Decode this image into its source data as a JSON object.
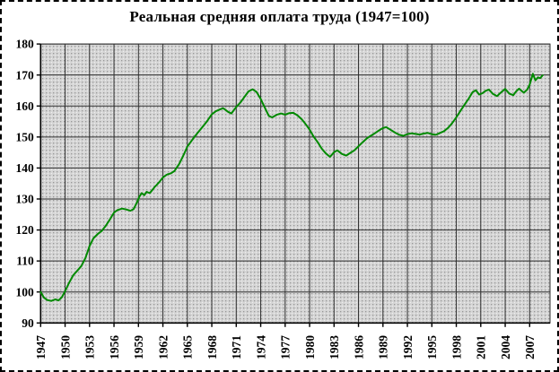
{
  "frame": {
    "border_style": "dashed",
    "page_bg": "#ffffff"
  },
  "chart_data": {
    "type": "line",
    "title": "Реальная средняя оплата труда (1947=100)",
    "xlabel": "",
    "ylabel": "",
    "xlim": [
      1947,
      2009.5
    ],
    "ylim": [
      90,
      180
    ],
    "x_ticks": [
      1947,
      1950,
      1953,
      1956,
      1959,
      1962,
      1965,
      1968,
      1971,
      1974,
      1977,
      1980,
      1983,
      1986,
      1989,
      1992,
      1995,
      1998,
      2001,
      2004,
      2007
    ],
    "y_ticks": [
      90,
      100,
      110,
      120,
      130,
      140,
      150,
      160,
      170,
      180
    ],
    "grid": true,
    "legend": false,
    "colors": {
      "line": "#008A00",
      "grid": "#2e2e2e",
      "axis": "#000000",
      "plot_bg": "#d6d6d6",
      "plot_dot": "#979797",
      "text": "#000000"
    },
    "series": [
      {
        "name": "Реальная средняя оплата труда",
        "points": [
          [
            1947.0,
            100.0
          ],
          [
            1947.4,
            98.2
          ],
          [
            1947.8,
            97.4
          ],
          [
            1948.3,
            97.1
          ],
          [
            1948.8,
            97.6
          ],
          [
            1949.2,
            97.3
          ],
          [
            1949.6,
            98.3
          ],
          [
            1950.0,
            100.2
          ],
          [
            1950.5,
            103.0
          ],
          [
            1951.0,
            105.4
          ],
          [
            1951.5,
            106.9
          ],
          [
            1952.0,
            108.4
          ],
          [
            1952.5,
            111.0
          ],
          [
            1953.0,
            114.8
          ],
          [
            1953.5,
            117.4
          ],
          [
            1954.0,
            118.7
          ],
          [
            1954.5,
            119.7
          ],
          [
            1955.0,
            121.4
          ],
          [
            1955.5,
            123.4
          ],
          [
            1956.0,
            125.6
          ],
          [
            1956.4,
            126.4
          ],
          [
            1957.0,
            126.9
          ],
          [
            1957.5,
            126.6
          ],
          [
            1958.0,
            126.2
          ],
          [
            1958.4,
            126.7
          ],
          [
            1958.8,
            128.8
          ],
          [
            1959.1,
            130.7
          ],
          [
            1959.4,
            131.9
          ],
          [
            1959.7,
            131.2
          ],
          [
            1960.0,
            132.3
          ],
          [
            1960.4,
            131.9
          ],
          [
            1961.0,
            133.9
          ],
          [
            1961.5,
            135.3
          ],
          [
            1962.0,
            136.9
          ],
          [
            1962.5,
            137.9
          ],
          [
            1963.0,
            138.3
          ],
          [
            1963.4,
            139.0
          ],
          [
            1964.0,
            141.3
          ],
          [
            1964.5,
            144.0
          ],
          [
            1965.0,
            146.9
          ],
          [
            1965.5,
            148.7
          ],
          [
            1966.0,
            150.5
          ],
          [
            1966.5,
            152.1
          ],
          [
            1967.0,
            153.7
          ],
          [
            1967.5,
            155.4
          ],
          [
            1968.0,
            157.3
          ],
          [
            1968.5,
            158.3
          ],
          [
            1969.0,
            158.9
          ],
          [
            1969.4,
            159.3
          ],
          [
            1970.0,
            158.1
          ],
          [
            1970.4,
            157.6
          ],
          [
            1971.0,
            159.7
          ],
          [
            1971.5,
            161.1
          ],
          [
            1972.0,
            162.9
          ],
          [
            1972.5,
            164.7
          ],
          [
            1973.0,
            165.4
          ],
          [
            1973.5,
            164.5
          ],
          [
            1974.0,
            162.3
          ],
          [
            1974.5,
            159.5
          ],
          [
            1975.0,
            156.8
          ],
          [
            1975.4,
            156.3
          ],
          [
            1976.0,
            157.2
          ],
          [
            1976.5,
            157.6
          ],
          [
            1977.0,
            157.2
          ],
          [
            1977.5,
            157.7
          ],
          [
            1978.0,
            157.8
          ],
          [
            1978.5,
            157.0
          ],
          [
            1979.0,
            155.8
          ],
          [
            1979.5,
            154.2
          ],
          [
            1980.0,
            152.4
          ],
          [
            1980.5,
            150.1
          ],
          [
            1981.0,
            148.3
          ],
          [
            1981.5,
            146.2
          ],
          [
            1982.0,
            144.7
          ],
          [
            1982.5,
            143.6
          ],
          [
            1983.0,
            145.1
          ],
          [
            1983.4,
            145.7
          ],
          [
            1984.0,
            144.5
          ],
          [
            1984.5,
            144.0
          ],
          [
            1985.0,
            144.9
          ],
          [
            1985.5,
            145.7
          ],
          [
            1986.0,
            147.0
          ],
          [
            1986.5,
            148.3
          ],
          [
            1987.0,
            149.5
          ],
          [
            1987.5,
            150.4
          ],
          [
            1988.0,
            151.2
          ],
          [
            1988.5,
            152.1
          ],
          [
            1989.0,
            152.9
          ],
          [
            1989.4,
            153.2
          ],
          [
            1990.0,
            152.2
          ],
          [
            1990.5,
            151.4
          ],
          [
            1991.0,
            150.7
          ],
          [
            1991.5,
            150.4
          ],
          [
            1992.0,
            150.9
          ],
          [
            1992.5,
            151.2
          ],
          [
            1993.0,
            151.0
          ],
          [
            1993.5,
            150.8
          ],
          [
            1994.0,
            151.1
          ],
          [
            1994.5,
            151.3
          ],
          [
            1995.0,
            150.9
          ],
          [
            1995.5,
            150.7
          ],
          [
            1996.0,
            151.3
          ],
          [
            1996.5,
            151.9
          ],
          [
            1997.0,
            153.0
          ],
          [
            1997.5,
            154.5
          ],
          [
            1998.0,
            156.3
          ],
          [
            1998.5,
            158.4
          ],
          [
            1999.0,
            160.4
          ],
          [
            1999.5,
            162.3
          ],
          [
            2000.0,
            164.5
          ],
          [
            2000.4,
            165.1
          ],
          [
            2000.8,
            163.7
          ],
          [
            2001.2,
            164.1
          ],
          [
            2001.6,
            164.9
          ],
          [
            2002.0,
            165.3
          ],
          [
            2002.5,
            163.9
          ],
          [
            2003.0,
            163.2
          ],
          [
            2003.5,
            164.4
          ],
          [
            2004.0,
            165.5
          ],
          [
            2004.5,
            164.0
          ],
          [
            2005.0,
            163.5
          ],
          [
            2005.3,
            164.6
          ],
          [
            2005.7,
            165.6
          ],
          [
            2006.0,
            164.9
          ],
          [
            2006.3,
            164.3
          ],
          [
            2006.7,
            165.3
          ],
          [
            2007.0,
            166.9
          ],
          [
            2007.4,
            170.4
          ],
          [
            2007.7,
            168.3
          ],
          [
            2008.0,
            169.2
          ],
          [
            2008.3,
            169.0
          ],
          [
            2008.6,
            169.9
          ]
        ]
      }
    ]
  }
}
